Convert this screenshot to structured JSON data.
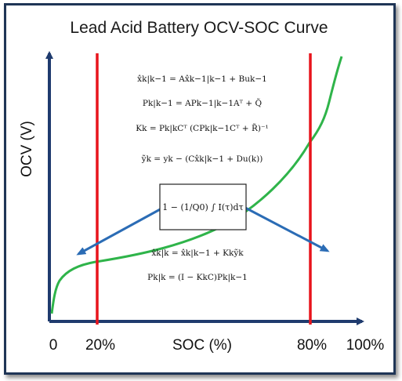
{
  "title": "Lead Acid Battery OCV-SOC Curve",
  "y_axis_label": "OCV (V)",
  "x_axis_label": "SOC (%)",
  "x_ticks": [
    "0",
    "20%",
    "80%",
    "100%"
  ],
  "equations_top": [
    "x̂k|k−1 = Ax̂k−1|k−1 + Buk−1",
    "Pk|k−1 = APk−1|k−1Aᵀ + Q̃",
    "Kk = Pk|kCᵀ (CPk|k−1Cᵀ + R̃)⁻¹",
    "ỹk = yk − (Cx̂k|k−1 + Du(k))"
  ],
  "center_box": "1 − (1/Q0) ∫ I(τ)dτ",
  "equations_bottom": [
    "x̂k|k = x̂k|k−1 + Kkỹk",
    "Pk|k = (I − KkC)Pk|k−1"
  ],
  "colors": {
    "curve": "#2fb44a",
    "marker_lines": "#e8141c",
    "axes": "#1f3b6e",
    "arrows": "#2b6cb5",
    "frame": "#1f3556"
  }
}
